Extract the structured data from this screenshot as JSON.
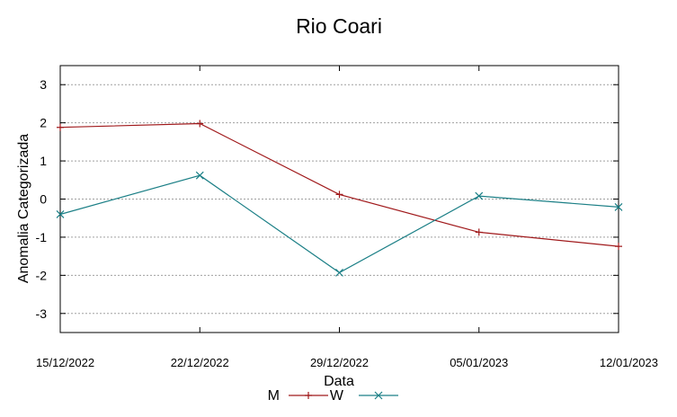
{
  "chart_data": {
    "type": "line",
    "title": "Rio Coari",
    "xlabel": "Data",
    "ylabel": "Anomalia Categorizada",
    "x": [
      "15/12/2022",
      "22/12/2022",
      "29/12/2022",
      "05/01/2023",
      "12/01/2023"
    ],
    "ylim": [
      -3.5,
      3.5
    ],
    "yticks": [
      -3,
      -2,
      -1,
      0,
      1,
      2,
      3
    ],
    "ytick_labels": [
      "-3",
      "-2",
      "-1",
      "0",
      "1",
      "2",
      "3"
    ],
    "grid": true,
    "legend_position": "bottom",
    "series": [
      {
        "name": "M",
        "marker": "plus",
        "color": "#a0191b",
        "values": [
          1.88,
          1.98,
          0.12,
          -0.87,
          -1.24
        ]
      },
      {
        "name": "W",
        "marker": "x",
        "color": "#1b7f86",
        "values": [
          -0.4,
          0.62,
          -1.93,
          0.08,
          -0.21
        ]
      }
    ]
  }
}
